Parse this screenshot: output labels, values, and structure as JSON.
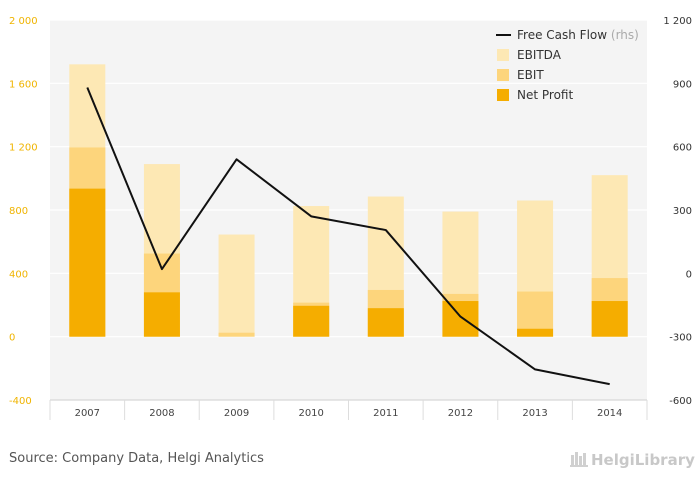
{
  "chart_data": {
    "type": "bar",
    "categories": [
      "2007",
      "2008",
      "2009",
      "2010",
      "2011",
      "2012",
      "2013",
      "2014"
    ],
    "series": [
      {
        "name": "EBITDA",
        "type": "bar",
        "axis": "left",
        "color": "#fde8b4",
        "values": [
          1720,
          1090,
          645,
          825,
          885,
          790,
          860,
          1020
        ]
      },
      {
        "name": "EBIT",
        "type": "bar",
        "axis": "left",
        "color": "#fdd57c",
        "values": [
          1195,
          525,
          25,
          215,
          295,
          270,
          285,
          370
        ]
      },
      {
        "name": "Net Profit",
        "type": "bar",
        "axis": "left",
        "color": "#f5ad00",
        "values": [
          935,
          280,
          0,
          195,
          180,
          225,
          50,
          225
        ]
      },
      {
        "name": "Free Cash Flow",
        "type": "line",
        "axis": "right",
        "color": "#111111",
        "values": [
          880,
          20,
          540,
          270,
          205,
          -205,
          -455,
          -525
        ]
      }
    ],
    "left_axis": {
      "min": -400,
      "max": 2000,
      "ticks": [
        -400,
        0,
        400,
        800,
        1200,
        1600,
        2000
      ],
      "tick_labels": [
        "-400",
        "0",
        "400",
        "800",
        "1 200",
        "1 600",
        "2 000"
      ]
    },
    "right_axis": {
      "min": -600,
      "max": 1200,
      "ticks": [
        -600,
        -300,
        0,
        300,
        600,
        900,
        1200
      ],
      "tick_labels": [
        "-600",
        "-300",
        "0",
        "300",
        "600",
        "900",
        "1 200"
      ]
    },
    "legend": {
      "placement": "top-right",
      "items": [
        {
          "label": "Free Cash Flow",
          "suffix": "(rhs)",
          "kind": "line",
          "color": "#111111"
        },
        {
          "label": "EBITDA",
          "kind": "box",
          "color": "#fde8b4"
        },
        {
          "label": "EBIT",
          "kind": "box",
          "color": "#fdd57c"
        },
        {
          "label": "Net Profit",
          "kind": "box",
          "color": "#f5ad00"
        }
      ]
    },
    "grid": true,
    "plot_background": "#f4f4f4",
    "grid_color": "#ffffff"
  },
  "footer": {
    "source": "Source: Company Data, Helgi Analytics",
    "logo": "HelgiLibrary"
  }
}
